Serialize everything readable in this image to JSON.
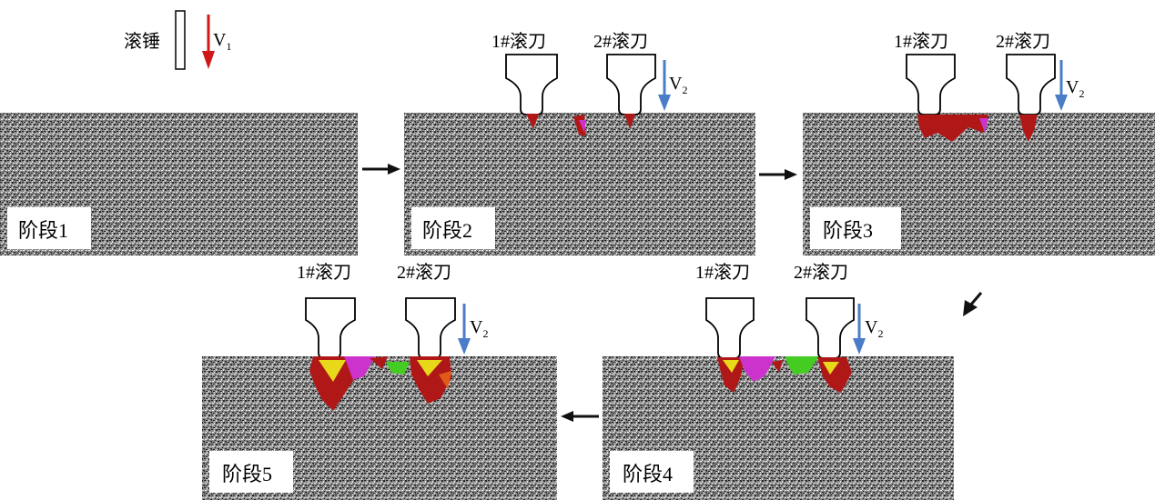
{
  "hammer": {
    "label": "滚锤",
    "velocity": "V",
    "velocity_sub": "1"
  },
  "cutters": {
    "cutter1": "1#滚刀",
    "cutter2": "2#滚刀",
    "velocity": "V",
    "velocity_sub": "2"
  },
  "stages": [
    "阶段1",
    "阶段2",
    "阶段3",
    "阶段4",
    "阶段5"
  ],
  "colors": {
    "rock_dark": "#2a2a2a",
    "rock_light": "#d6d6d6",
    "hammer_arrow": "#d01818",
    "cutter_arrow": "#4a7cc8",
    "flow_arrow": "#111111",
    "crack_red": "#b01818",
    "crack_magenta": "#cc33cc",
    "crack_green": "#44cc22",
    "crack_yellow": "#e8d81a",
    "crack_orange": "#e05a1a"
  }
}
